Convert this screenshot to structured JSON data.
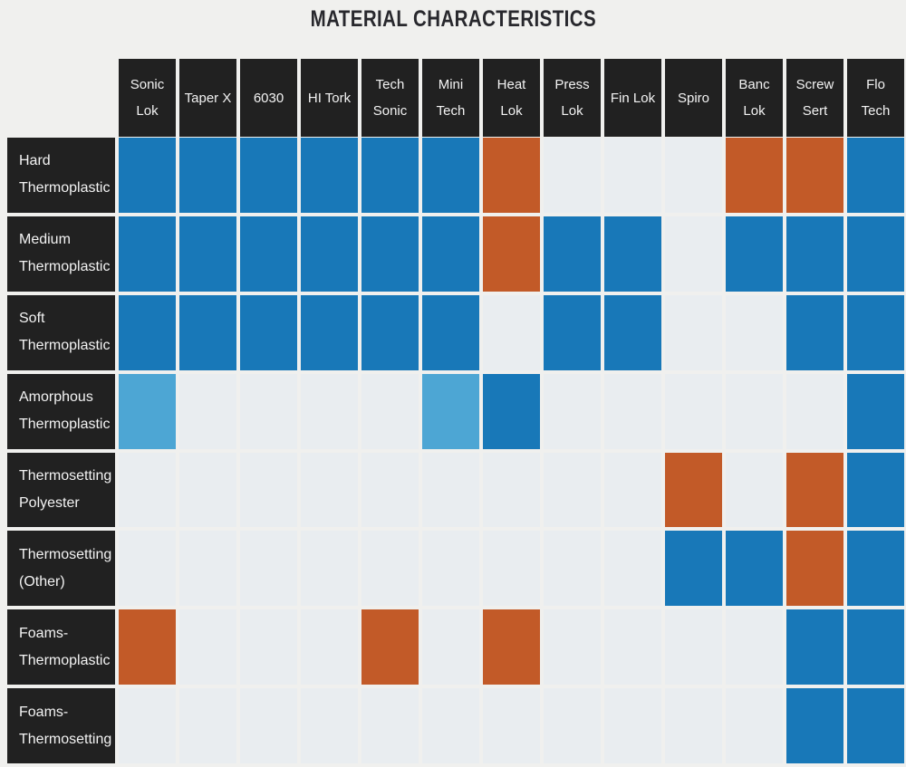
{
  "title": "MATERIAL CHARACTERISTICS",
  "colors": {
    "blue": "#1878b8",
    "lightblue": "#4da6d4",
    "orange": "#c25a28",
    "empty": "#e9edf0",
    "header_bg": "#212121",
    "header_text": "#f3f3f3",
    "page_bg": "#f0f0ee",
    "title_text": "#28282d"
  },
  "chart_data": {
    "type": "heatmap",
    "title": "MATERIAL CHARACTERISTICS",
    "legend_position": "none",
    "grid": "off",
    "columns": [
      "Sonic Lok",
      "Taper X",
      "6030",
      "HI Tork",
      "Tech Sonic",
      "Mini Tech",
      "Heat Lok",
      "Press Lok",
      "Fin Lok",
      "Spiro",
      "Banc Lok",
      "Screw Sert",
      "Flo Tech"
    ],
    "rows": [
      "Hard Thermoplastic",
      "Medium Thermoplastic",
      "Soft Thermoplastic",
      "Amorphous Thermoplastic",
      "Thermosetting Polyester",
      "Thermosetting (Other)",
      "Foams-Thermoplastic",
      "Foams-Thermosetting"
    ],
    "cell_color_values": [
      "blue",
      "lightblue",
      "orange",
      "empty"
    ],
    "cells": [
      [
        "blue",
        "blue",
        "blue",
        "blue",
        "blue",
        "blue",
        "orange",
        "empty",
        "empty",
        "empty",
        "orange",
        "orange",
        "blue"
      ],
      [
        "blue",
        "blue",
        "blue",
        "blue",
        "blue",
        "blue",
        "orange",
        "blue",
        "blue",
        "empty",
        "blue",
        "blue",
        "blue"
      ],
      [
        "blue",
        "blue",
        "blue",
        "blue",
        "blue",
        "blue",
        "empty",
        "blue",
        "blue",
        "empty",
        "empty",
        "blue",
        "blue"
      ],
      [
        "lightblue",
        "empty",
        "empty",
        "empty",
        "empty",
        "lightblue",
        "blue",
        "empty",
        "empty",
        "empty",
        "empty",
        "empty",
        "blue"
      ],
      [
        "empty",
        "empty",
        "empty",
        "empty",
        "empty",
        "empty",
        "empty",
        "empty",
        "empty",
        "orange",
        "empty",
        "orange",
        "blue"
      ],
      [
        "empty",
        "empty",
        "empty",
        "empty",
        "empty",
        "empty",
        "empty",
        "empty",
        "empty",
        "blue",
        "blue",
        "orange",
        "blue"
      ],
      [
        "orange",
        "empty",
        "empty",
        "empty",
        "orange",
        "empty",
        "orange",
        "empty",
        "empty",
        "empty",
        "empty",
        "blue",
        "blue"
      ],
      [
        "empty",
        "empty",
        "empty",
        "empty",
        "empty",
        "empty",
        "empty",
        "empty",
        "empty",
        "empty",
        "empty",
        "blue",
        "blue"
      ]
    ]
  }
}
